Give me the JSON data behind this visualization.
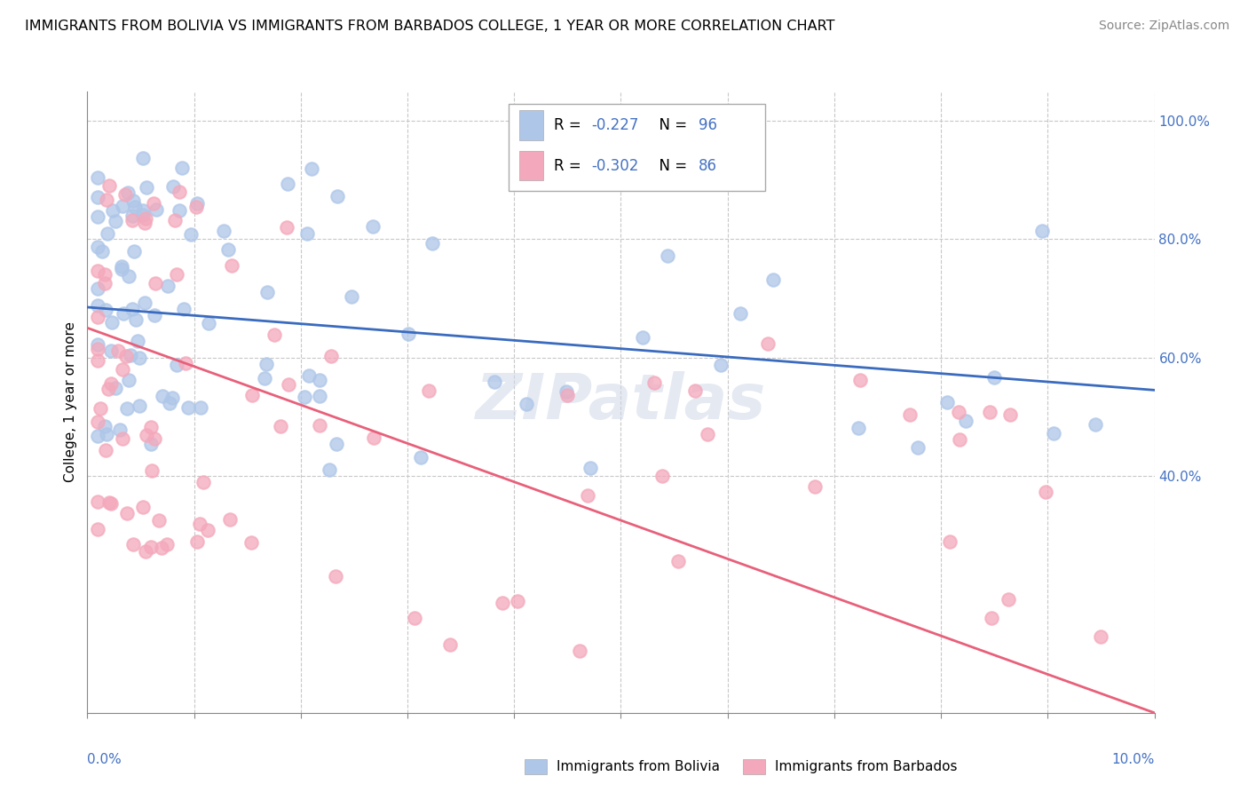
{
  "title": "IMMIGRANTS FROM BOLIVIA VS IMMIGRANTS FROM BARBADOS COLLEGE, 1 YEAR OR MORE CORRELATION CHART",
  "source": "Source: ZipAtlas.com",
  "ylabel": "College, 1 year or more",
  "xlim": [
    0.0,
    0.1
  ],
  "ylim": [
    0.0,
    1.05
  ],
  "bolivia_R": -0.227,
  "bolivia_N": 96,
  "barbados_R": -0.302,
  "barbados_N": 86,
  "bolivia_color": "#aec6e8",
  "barbados_color": "#f4a8bb",
  "bolivia_line_color": "#3a6bbf",
  "barbados_line_color": "#e8607a",
  "watermark": "ZIPatlas",
  "bolivia_line_x0": 0.0,
  "bolivia_line_y0": 0.685,
  "bolivia_line_x1": 0.1,
  "bolivia_line_y1": 0.545,
  "barbados_line_x0": 0.0,
  "barbados_line_y0": 0.65,
  "barbados_line_x1": 0.1,
  "barbados_line_y1": 0.0
}
